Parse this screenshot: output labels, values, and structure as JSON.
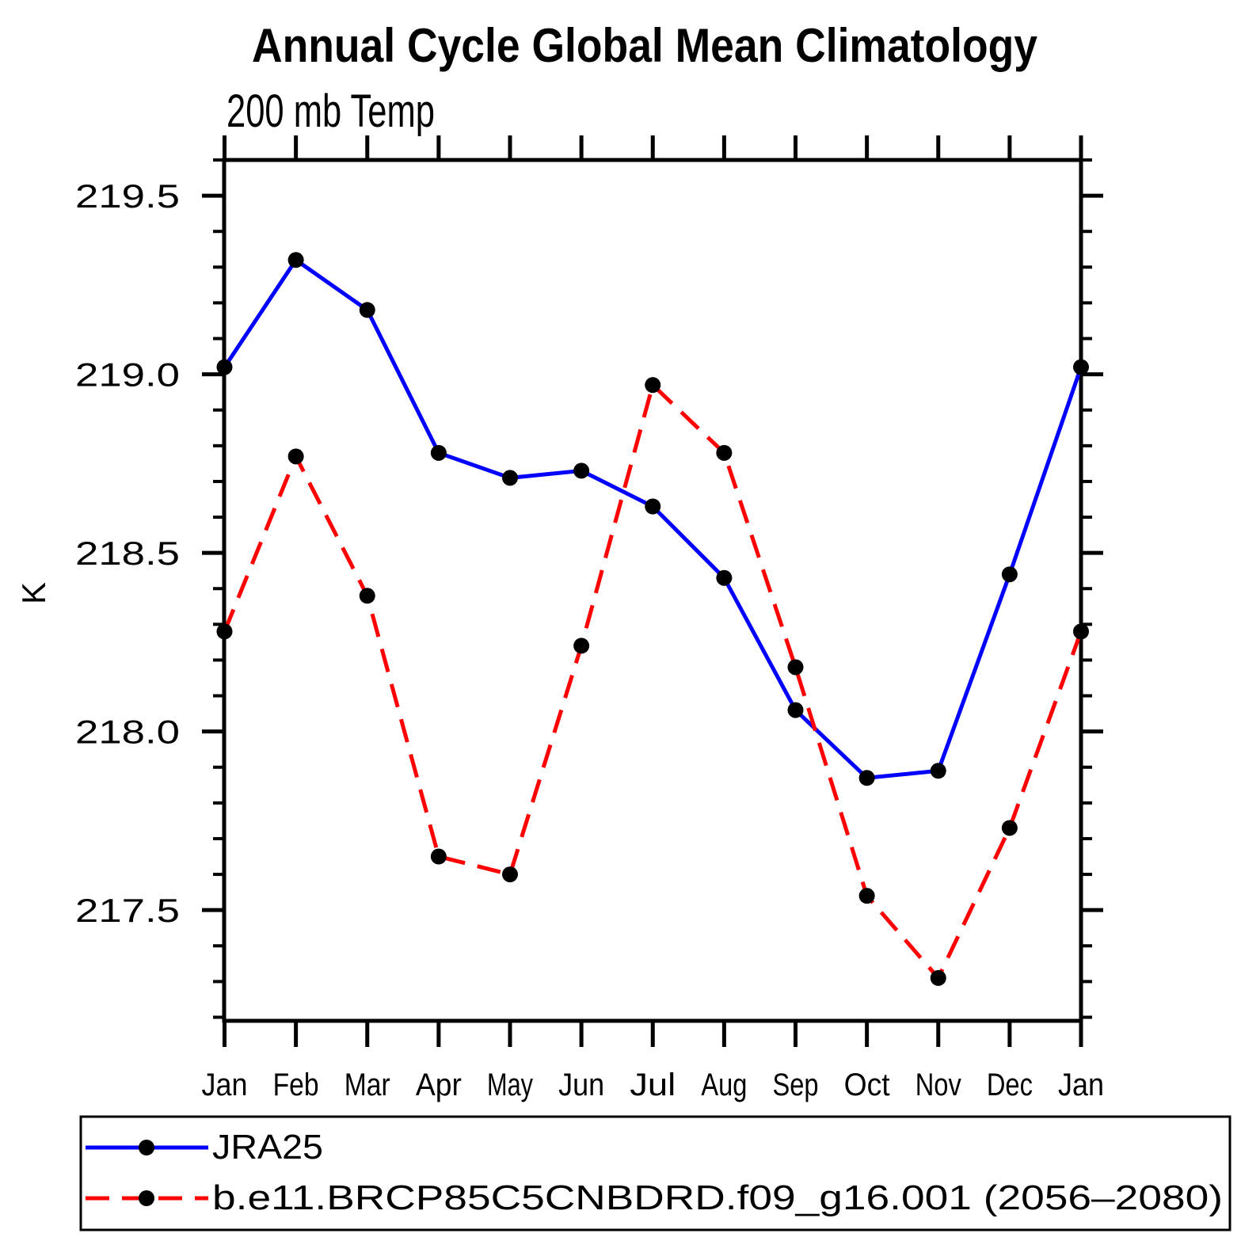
{
  "chart_data": {
    "type": "line",
    "title": "Annual Cycle Global Mean Climatology",
    "subtitle": "200 mb Temp",
    "ylabel": "K",
    "xlabel": "",
    "categories": [
      "Jan",
      "Feb",
      "Mar",
      "Apr",
      "May",
      "Jun",
      "Jul",
      "Aug",
      "Sep",
      "Oct",
      "Nov",
      "Dec",
      "Jan"
    ],
    "series": [
      {
        "name": "JRA25",
        "color": "#0000ff",
        "line_style": "solid",
        "marker": "filled-circle",
        "marker_color": "#000000",
        "values": [
          219.02,
          219.32,
          219.18,
          218.78,
          218.71,
          218.73,
          218.63,
          218.43,
          218.06,
          217.87,
          217.89,
          218.44,
          219.02
        ]
      },
      {
        "name": "b.e11.BRCP85C5CNBDRD.f09_g16.001 (2056–2080)",
        "color": "#ff0000",
        "line_style": "dashed",
        "marker": "filled-circle",
        "marker_color": "#000000",
        "values": [
          218.28,
          218.77,
          218.38,
          217.65,
          217.6,
          218.24,
          218.97,
          218.78,
          218.18,
          217.54,
          217.31,
          217.73,
          218.28
        ]
      }
    ],
    "ylim": [
      217.19,
      219.6
    ],
    "y_major_ticks": [
      217.5,
      218.0,
      218.5,
      219.0,
      219.5
    ],
    "y_tick_labels": [
      "217.5",
      "218.0",
      "218.5",
      "219.0",
      "219.5"
    ],
    "y_minor_step": 0.1,
    "grid": false,
    "legend_position": "bottom-left-box",
    "axis_color": "#000000",
    "background_color": "#ffffff"
  }
}
